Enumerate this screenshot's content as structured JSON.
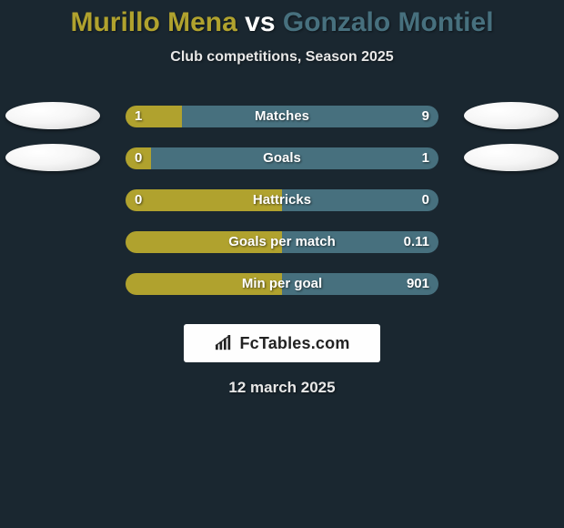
{
  "title": {
    "player1": "Murillo Mena",
    "vs": "vs",
    "player2": "Gonzalo Montiel",
    "player1_color": "#b0a22e",
    "vs_color": "#ffffff",
    "player2_color": "#47707e"
  },
  "subtitle": "Club competitions, Season 2025",
  "colors": {
    "left_bar": "#b0a22e",
    "right_bar": "#47707e",
    "background": "#1a2730"
  },
  "stats": [
    {
      "label": "Matches",
      "left_val": "1",
      "right_val": "9",
      "left_pct": 18,
      "right_pct": 82,
      "show_left_orb": true,
      "show_right_orb": true
    },
    {
      "label": "Goals",
      "left_val": "0",
      "right_val": "1",
      "left_pct": 8,
      "right_pct": 92,
      "show_left_orb": true,
      "show_right_orb": true
    },
    {
      "label": "Hattricks",
      "left_val": "0",
      "right_val": "0",
      "left_pct": 50,
      "right_pct": 50,
      "show_left_orb": false,
      "show_right_orb": false
    },
    {
      "label": "Goals per match",
      "left_val": "",
      "right_val": "0.11",
      "left_pct": 50,
      "right_pct": 50,
      "show_left_orb": false,
      "show_right_orb": false
    },
    {
      "label": "Min per goal",
      "left_val": "",
      "right_val": "901",
      "left_pct": 50,
      "right_pct": 50,
      "show_left_orb": false,
      "show_right_orb": false
    }
  ],
  "logo_text": "FcTables.com",
  "date": "12 march 2025"
}
